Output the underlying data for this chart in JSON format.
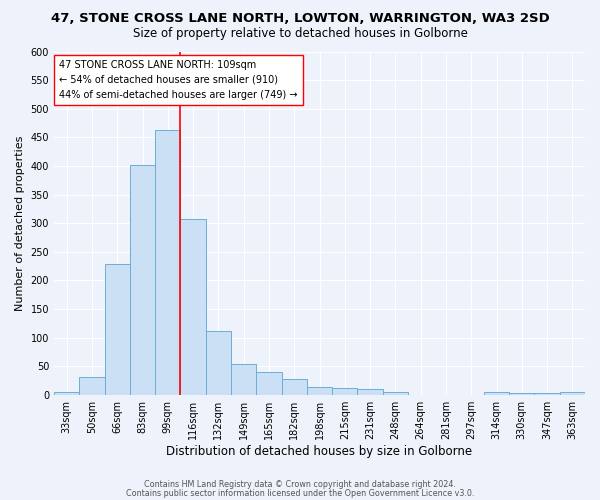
{
  "title1": "47, STONE CROSS LANE NORTH, LOWTON, WARRINGTON, WA3 2SD",
  "title2": "Size of property relative to detached houses in Golborne",
  "xlabel": "Distribution of detached houses by size in Golborne",
  "ylabel": "Number of detached properties",
  "categories": [
    "33sqm",
    "50sqm",
    "66sqm",
    "83sqm",
    "99sqm",
    "116sqm",
    "132sqm",
    "149sqm",
    "165sqm",
    "182sqm",
    "198sqm",
    "215sqm",
    "231sqm",
    "248sqm",
    "264sqm",
    "281sqm",
    "297sqm",
    "314sqm",
    "330sqm",
    "347sqm",
    "363sqm"
  ],
  "values": [
    5,
    31,
    228,
    401,
    463,
    307,
    111,
    53,
    39,
    27,
    13,
    12,
    10,
    5,
    0,
    0,
    0,
    4,
    3,
    3,
    4
  ],
  "bar_color": "#cce0f5",
  "bar_edge_color": "#6aaed6",
  "red_line_x": 4.5,
  "annotation_text": "47 STONE CROSS LANE NORTH: 109sqm\n← 54% of detached houses are smaller (910)\n44% of semi-detached houses are larger (749) →",
  "ylim": [
    0,
    600
  ],
  "yticks": [
    0,
    50,
    100,
    150,
    200,
    250,
    300,
    350,
    400,
    450,
    500,
    550,
    600
  ],
  "footnote1": "Contains HM Land Registry data © Crown copyright and database right 2024.",
  "footnote2": "Contains public sector information licensed under the Open Government Licence v3.0.",
  "bg_color": "#eef2fa",
  "grid_color": "#ffffff",
  "title1_fontsize": 9.5,
  "title2_fontsize": 8.5,
  "xlabel_fontsize": 8.5,
  "ylabel_fontsize": 8,
  "tick_fontsize": 7,
  "ann_fontsize": 7,
  "footnote_fontsize": 5.8
}
